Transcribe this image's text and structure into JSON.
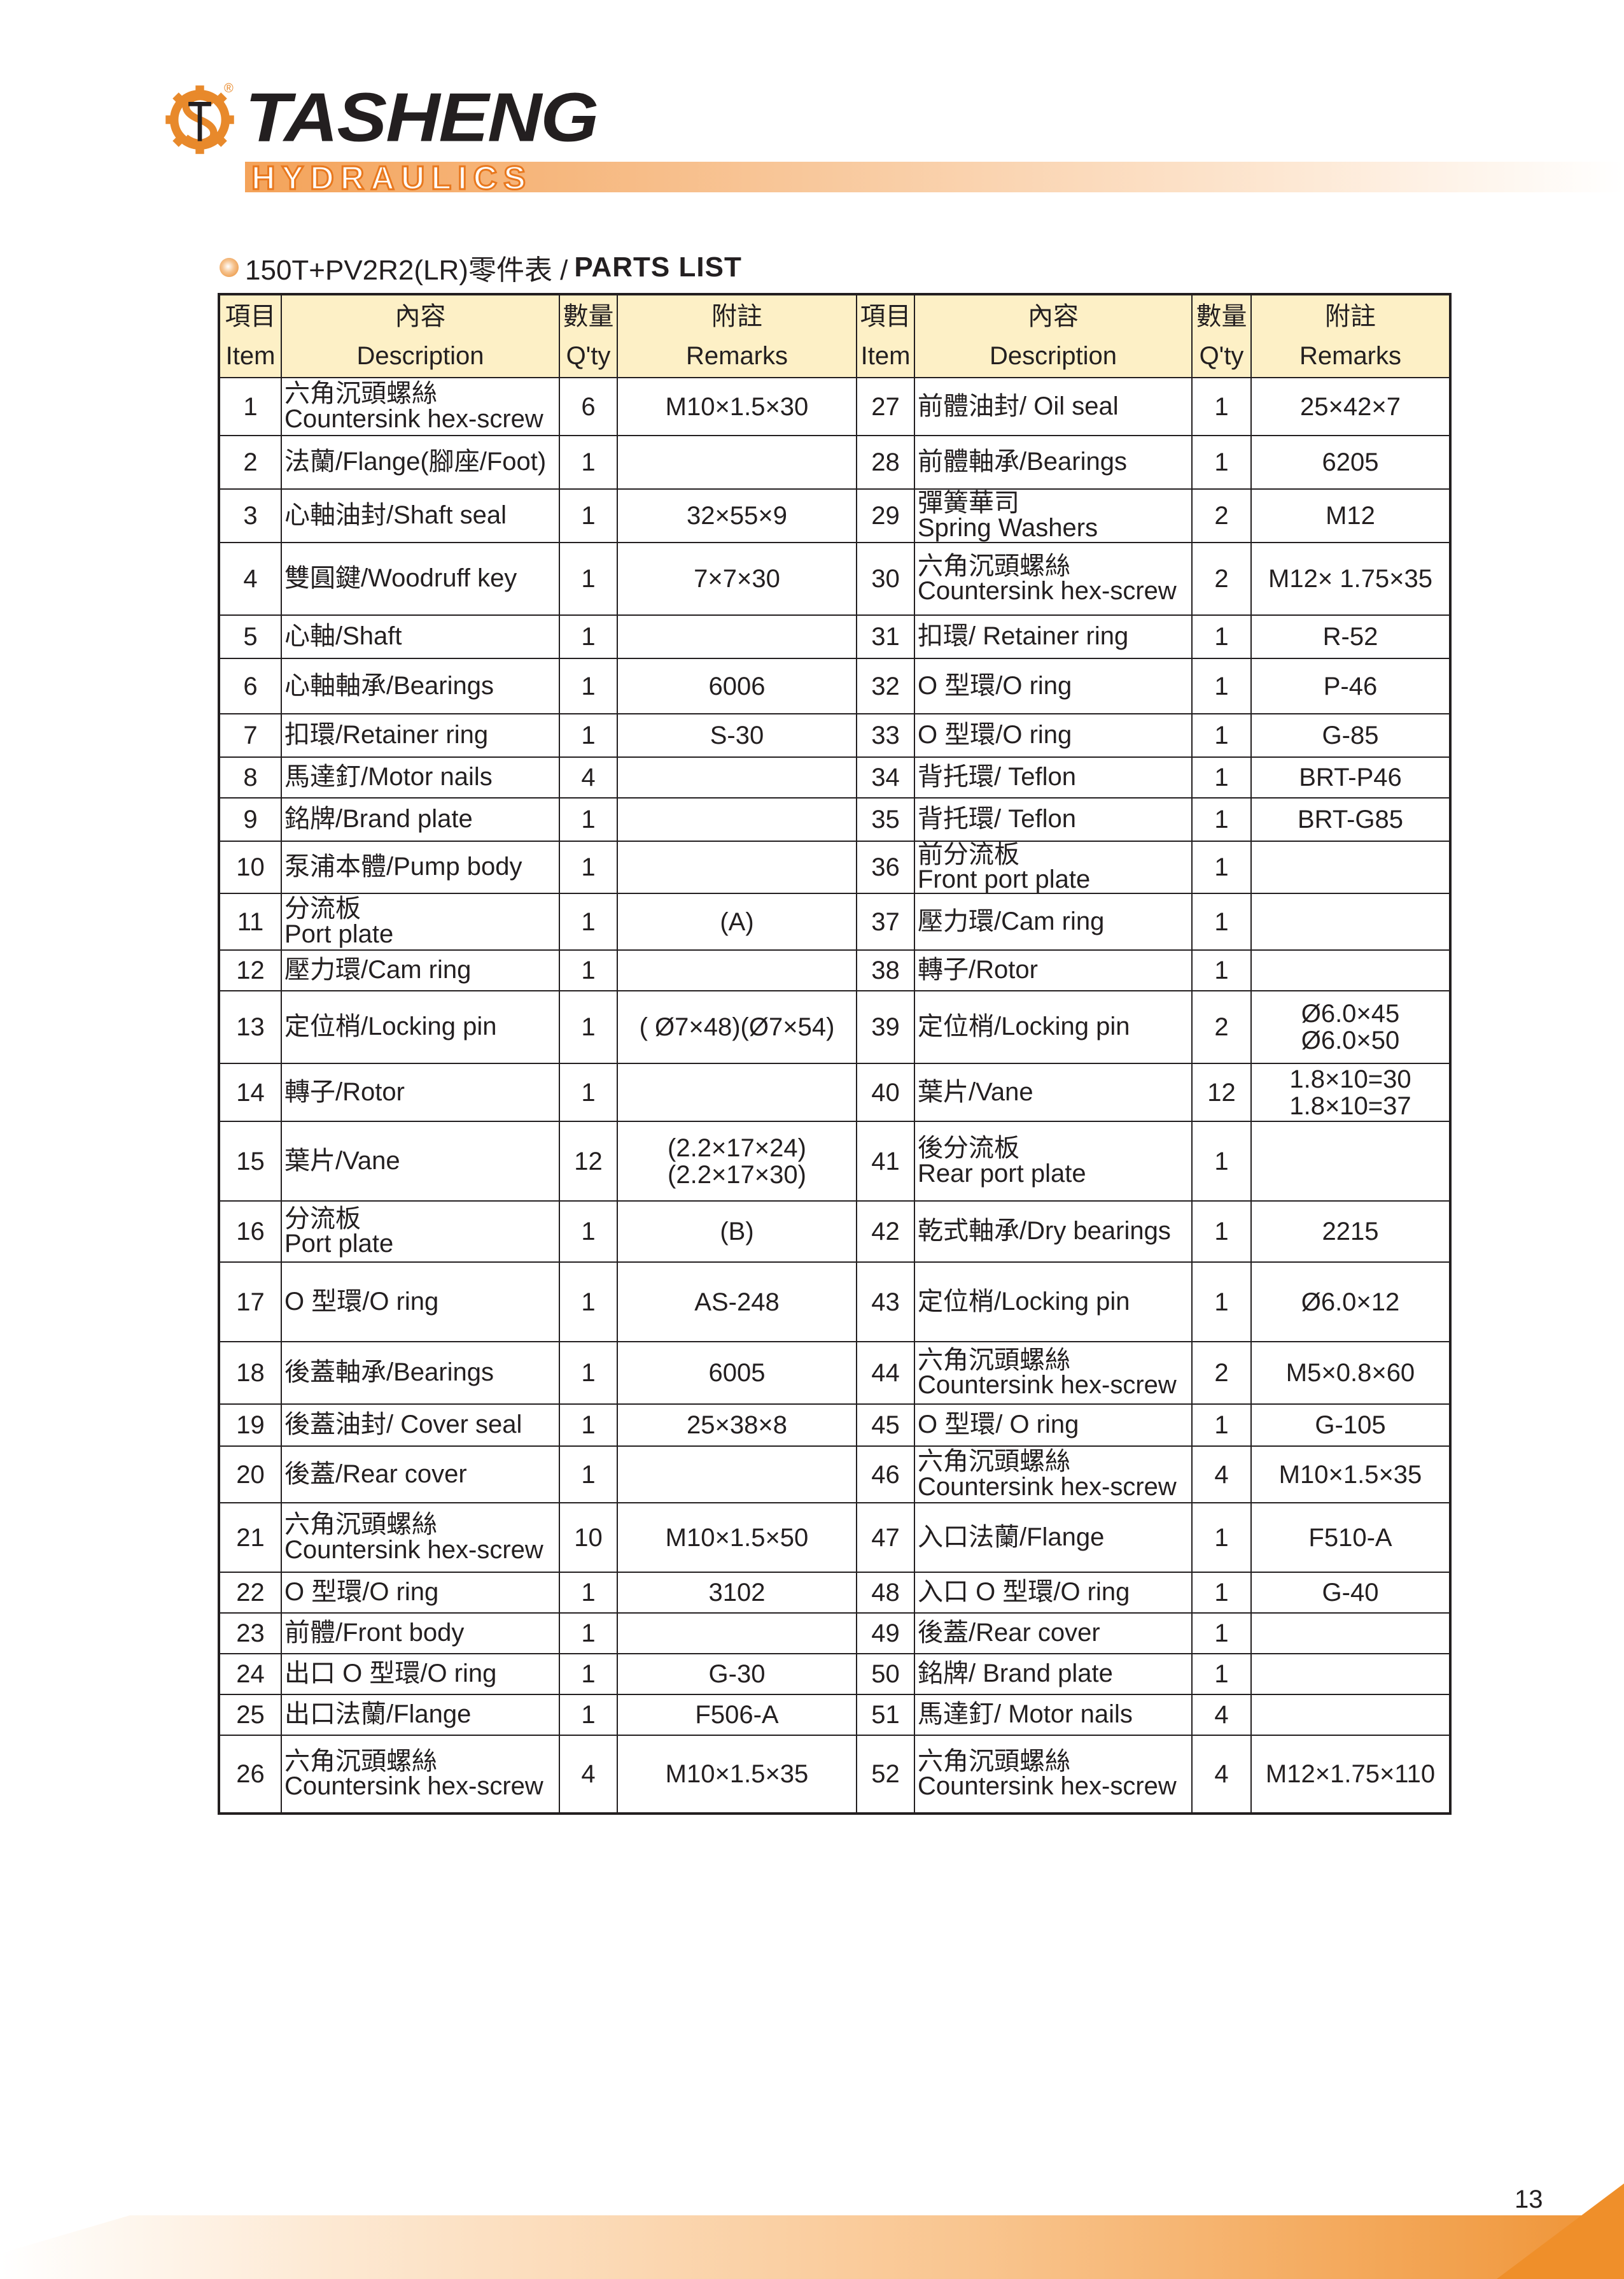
{
  "logo": {
    "brand": "TASHENG",
    "sub": "HYDRAULICS",
    "mark": "ST",
    "registered": "®",
    "colors": {
      "orange": "#e8892b",
      "black": "#231f20"
    }
  },
  "title": {
    "model": "150T+PV2R2(LR)零件表 / ",
    "bold": "PARTS LIST",
    "icon": "orange-bullet"
  },
  "table": {
    "headers": [
      {
        "zh": "項目",
        "en": "Item"
      },
      {
        "zh": "內容",
        "en": "Description"
      },
      {
        "zh": "數量",
        "en": "Q'ty"
      },
      {
        "zh": "附註",
        "en": "Remarks"
      },
      {
        "zh": "項目",
        "en": "Item"
      },
      {
        "zh": "內容",
        "en": "Description"
      },
      {
        "zh": "數量",
        "en": "Q'ty"
      },
      {
        "zh": "附註",
        "en": "Remarks"
      }
    ],
    "header_bg": "#fdf0c6",
    "rows": [
      {
        "l": [
          "1",
          "六角沉頭螺絲\nCountersink hex-screw",
          "6",
          "M10×1.5×30"
        ],
        "r": [
          "27",
          "前體油封/ Oil seal",
          "1",
          "25×42×7"
        ]
      },
      {
        "l": [
          "2",
          "法蘭/Flange(腳座/Foot)",
          "1",
          ""
        ],
        "r": [
          "28",
          "前體軸承/Bearings",
          "1",
          "6205"
        ]
      },
      {
        "l": [
          "3",
          "心軸油封/Shaft seal",
          "1",
          "32×55×9"
        ],
        "r": [
          "29",
          "彈簧華司\nSpring Washers",
          "2",
          "M12"
        ]
      },
      {
        "l": [
          "4",
          "雙圓鍵/Woodruff key",
          "1",
          "7×7×30"
        ],
        "r": [
          "30",
          "六角沉頭螺絲\nCountersink hex-screw",
          "2",
          "M12× 1.75×35"
        ]
      },
      {
        "l": [
          "5",
          "心軸/Shaft",
          "1",
          ""
        ],
        "r": [
          "31",
          "扣環/ Retainer ring",
          "1",
          "R-52"
        ]
      },
      {
        "l": [
          "6",
          "心軸軸承/Bearings",
          "1",
          "6006"
        ],
        "r": [
          "32",
          "O 型環/O ring",
          "1",
          "P-46"
        ]
      },
      {
        "l": [
          "7",
          "扣環/Retainer ring",
          "1",
          "S-30"
        ],
        "r": [
          "33",
          "O 型環/O ring",
          "1",
          "G-85"
        ]
      },
      {
        "l": [
          "8",
          "馬達釘/Motor nails",
          "4",
          ""
        ],
        "r": [
          "34",
          "背托環/ Teflon",
          "1",
          "BRT-P46"
        ]
      },
      {
        "l": [
          "9",
          "銘牌/Brand plate",
          "1",
          ""
        ],
        "r": [
          "35",
          "背托環/ Teflon",
          "1",
          "BRT-G85"
        ]
      },
      {
        "l": [
          "10",
          "泵浦本體/Pump body",
          "1",
          ""
        ],
        "r": [
          "36",
          "前分流板\nFront port plate",
          "1",
          ""
        ]
      },
      {
        "l": [
          "11",
          "分流板\nPort plate",
          "1",
          "(A)"
        ],
        "r": [
          "37",
          "壓力環/Cam ring",
          "1",
          ""
        ]
      },
      {
        "l": [
          "12",
          "壓力環/Cam ring",
          "1",
          ""
        ],
        "r": [
          "38",
          "轉子/Rotor",
          "1",
          ""
        ]
      },
      {
        "l": [
          "13",
          "定位梢/Locking pin",
          "1",
          "( Ø7×48)(Ø7×54)"
        ],
        "r": [
          "39",
          "定位梢/Locking pin",
          "2",
          "Ø6.0×45\nØ6.0×50"
        ]
      },
      {
        "l": [
          "14",
          "轉子/Rotor",
          "1",
          ""
        ],
        "r": [
          "40",
          "葉片/Vane",
          "12",
          "1.8×10=30\n1.8×10=37"
        ]
      },
      {
        "l": [
          "15",
          "葉片/Vane",
          "12",
          "(2.2×17×24)\n(2.2×17×30)"
        ],
        "r": [
          "41",
          "後分流板\nRear port plate",
          "1",
          ""
        ]
      },
      {
        "l": [
          "16",
          "分流板\nPort plate",
          "1",
          "(B)"
        ],
        "r": [
          "42",
          "乾式軸承/Dry bearings",
          "1",
          "2215"
        ]
      },
      {
        "l": [
          "17",
          "O 型環/O ring",
          "1",
          "AS-248"
        ],
        "r": [
          "43",
          "定位梢/Locking pin",
          "1",
          "Ø6.0×12"
        ]
      },
      {
        "l": [
          "18",
          "後蓋軸承/Bearings",
          "1",
          "6005"
        ],
        "r": [
          "44",
          "六角沉頭螺絲\nCountersink hex-screw",
          "2",
          "M5×0.8×60"
        ]
      },
      {
        "l": [
          "19",
          "後蓋油封/ Cover seal",
          "1",
          "25×38×8"
        ],
        "r": [
          "45",
          "O 型環/ O ring",
          "1",
          "G-105"
        ]
      },
      {
        "l": [
          "20",
          "後蓋/Rear cover",
          "1",
          ""
        ],
        "r": [
          "46",
          "六角沉頭螺絲\nCountersink hex-screw",
          "4",
          "M10×1.5×35"
        ]
      },
      {
        "l": [
          "21",
          "六角沉頭螺絲\nCountersink hex-screw",
          "10",
          "M10×1.5×50"
        ],
        "r": [
          "47",
          "入口法蘭/Flange",
          "1",
          "F510-A"
        ]
      },
      {
        "l": [
          "22",
          "O 型環/O ring",
          "1",
          "3102"
        ],
        "r": [
          "48",
          "入口 O 型環/O ring",
          "1",
          "G-40"
        ]
      },
      {
        "l": [
          "23",
          "前體/Front body",
          "1",
          ""
        ],
        "r": [
          "49",
          "後蓋/Rear cover",
          "1",
          ""
        ]
      },
      {
        "l": [
          "24",
          "出口 O 型環/O ring",
          "1",
          "G-30"
        ],
        "r": [
          "50",
          "銘牌/ Brand plate",
          "1",
          ""
        ]
      },
      {
        "l": [
          "25",
          "出口法蘭/Flange",
          "1",
          "F506-A"
        ],
        "r": [
          "51",
          "馬達釘/ Motor nails",
          "4",
          ""
        ]
      },
      {
        "l": [
          "26",
          "六角沉頭螺絲\nCountersink hex-screw",
          "4",
          "M10×1.5×35"
        ],
        "r": [
          "52",
          "六角沉頭螺絲\nCountersink hex-screw",
          "4",
          "M12×1.75×110"
        ]
      }
    ]
  },
  "footer": {
    "page_number": "13",
    "accent": "#ef8f2a"
  }
}
